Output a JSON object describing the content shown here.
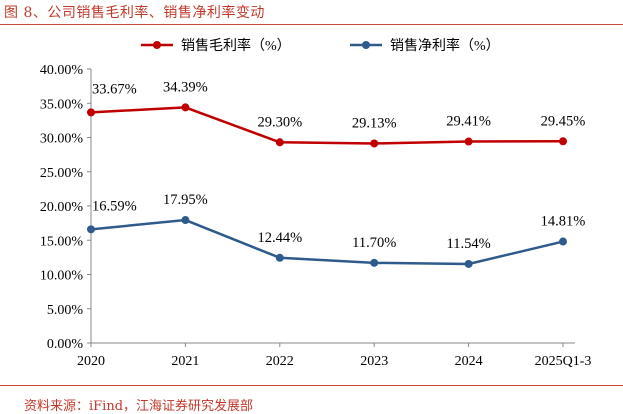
{
  "figure": {
    "title": "图 8、公司销售毛利率、销售净利率变动",
    "source": "资料来源：iFind，江海证券研究发展部"
  },
  "colors": {
    "gross": "#c00000",
    "net": "#2e5a8c",
    "axis": "#888888",
    "accent": "#c0392b"
  },
  "chart_data": {
    "type": "line",
    "categories": [
      "2020",
      "2021",
      "2022",
      "2023",
      "2024",
      "2025Q1-3"
    ],
    "series": [
      {
        "name": "销售毛利率（%）",
        "values": [
          33.67,
          34.39,
          29.3,
          29.13,
          29.41,
          29.45
        ],
        "labels": [
          "33.67%",
          "34.39%",
          "29.30%",
          "29.13%",
          "29.41%",
          "29.45%"
        ]
      },
      {
        "name": "销售净利率（%）",
        "values": [
          16.59,
          17.95,
          12.44,
          11.7,
          11.54,
          14.81
        ],
        "labels": [
          "16.59%",
          "17.95%",
          "12.44%",
          "11.70%",
          "11.54%",
          "14.81%"
        ]
      }
    ],
    "ylim": [
      0,
      40
    ],
    "yticks": [
      "0.00%",
      "5.00%",
      "10.00%",
      "15.00%",
      "20.00%",
      "25.00%",
      "30.00%",
      "35.00%",
      "40.00%"
    ],
    "legend_position": "top",
    "grid": false
  }
}
